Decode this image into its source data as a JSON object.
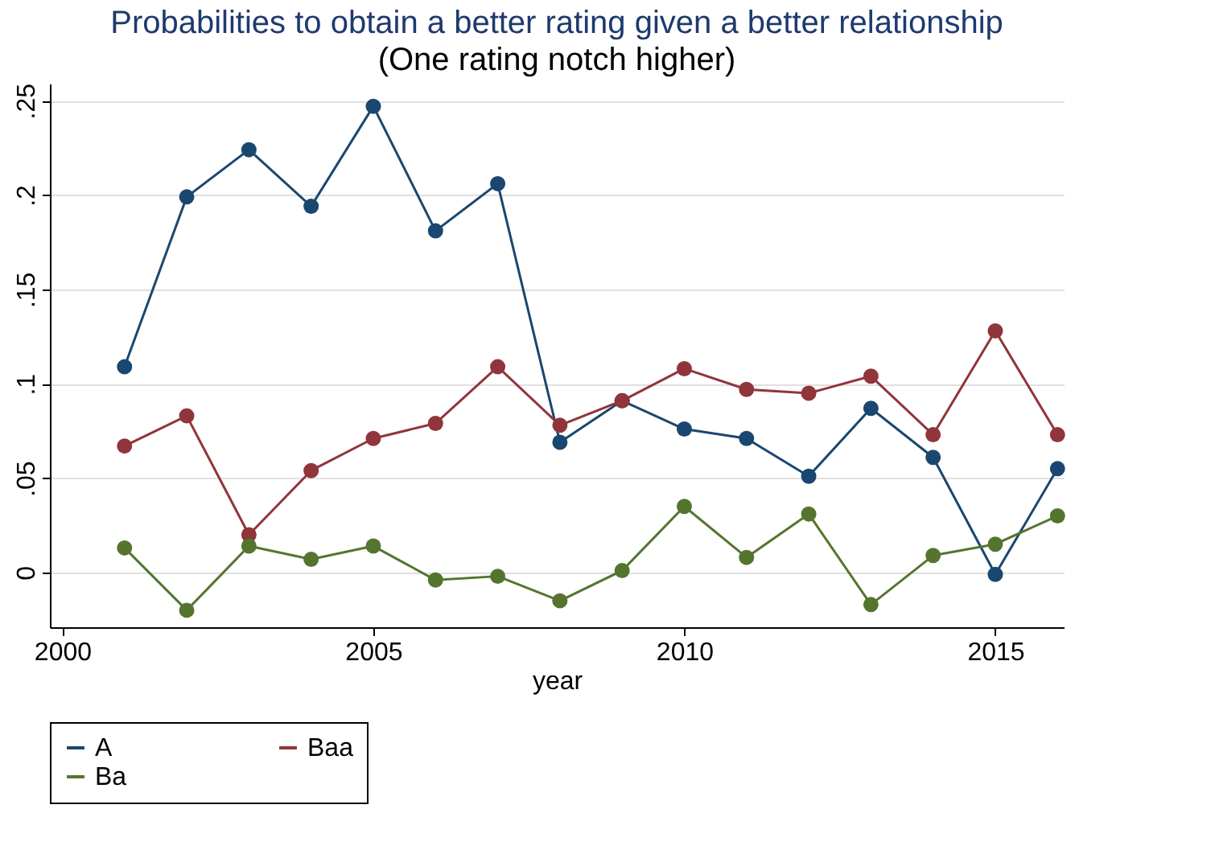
{
  "chart_data": {
    "type": "line",
    "title": "Probabilities to obtain a better rating given a better relationship",
    "subtitle": "(One rating notch higher)",
    "xlabel": "year",
    "x": [
      2001,
      2002,
      2003,
      2004,
      2005,
      2006,
      2007,
      2008,
      2009,
      2010,
      2011,
      2012,
      2013,
      2014,
      2015,
      2016
    ],
    "series": [
      {
        "name": "A",
        "color": "#1a476f",
        "values": [
          0.109,
          0.199,
          0.224,
          0.194,
          0.247,
          0.181,
          0.206,
          0.069,
          0.091,
          0.076,
          0.071,
          0.051,
          0.087,
          0.061,
          -0.001,
          0.055
        ]
      },
      {
        "name": "Baa",
        "color": "#90353b",
        "values": [
          0.067,
          0.083,
          0.02,
          0.054,
          0.071,
          0.079,
          0.109,
          0.078,
          0.091,
          0.108,
          0.097,
          0.095,
          0.104,
          0.073,
          0.128,
          0.073
        ]
      },
      {
        "name": "Ba",
        "color": "#55752f",
        "values": [
          0.013,
          -0.02,
          0.014,
          0.007,
          0.014,
          -0.004,
          -0.002,
          -0.015,
          0.001,
          0.035,
          0.008,
          0.031,
          -0.017,
          0.009,
          0.015,
          0.03
        ]
      }
    ],
    "xlim": [
      1999.8,
      2016.1
    ],
    "xticks": [
      2000,
      2005,
      2010,
      2015
    ],
    "ylim": [
      -0.029,
      0.259
    ],
    "yticks": [
      0,
      {
        "value": 0.05,
        "label": ".05"
      },
      {
        "value": 0.1,
        "label": ".1"
      },
      {
        "value": 0.15,
        "label": ".15"
      },
      {
        "value": 0.2,
        "label": ".2"
      },
      {
        "value": 0.25,
        "label": ".25"
      }
    ],
    "grid": "y",
    "legend": "bottom",
    "marker": "circle",
    "line_style": "solid"
  }
}
